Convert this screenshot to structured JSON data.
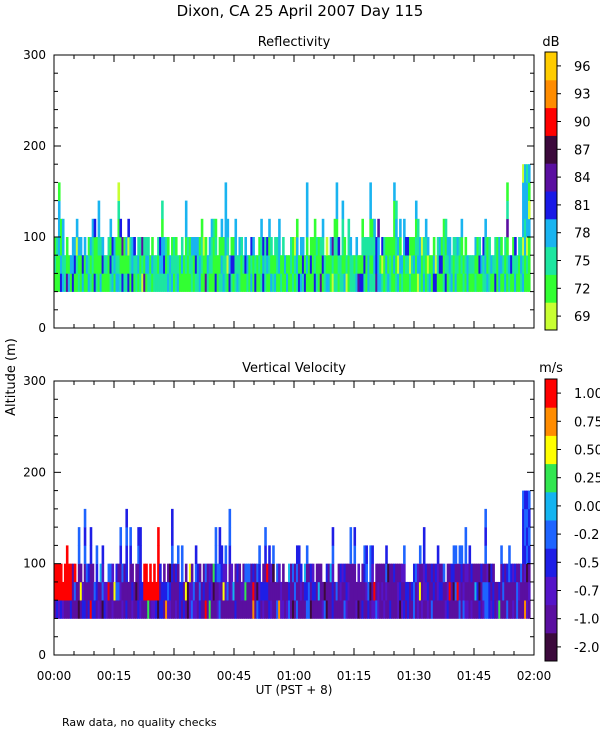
{
  "figure": {
    "title": "Dixon, CA 25 April 2007  Day 115",
    "ylabel": "Altitude (m)",
    "xlabel": "UT  (PST + 8)",
    "note": "Raw data, no quality checks"
  },
  "chart_data": [
    {
      "type": "heatmap",
      "title": "Reflectivity",
      "xlabel": "UT  (PST + 8)",
      "ylabel": "Altitude (m)",
      "xlim": [
        0,
        120
      ],
      "ylim": [
        0,
        300
      ],
      "x_tick_labels": [
        "00:00",
        "00:15",
        "00:30",
        "00:45",
        "01:00",
        "01:15",
        "01:30",
        "01:45",
        "02:00"
      ],
      "y_ticks": [
        0,
        100,
        200,
        300
      ],
      "colorbar": {
        "unit": "dB",
        "tick_labels": [
          "69",
          "72",
          "75",
          "78",
          "81",
          "84",
          "87",
          "90",
          "93",
          "96"
        ],
        "colors": [
          "#c8ff32",
          "#32ff32",
          "#1de6a0",
          "#19b4f0",
          "#1919e6",
          "#5a0fa0",
          "#3c0a3c",
          "#ff0000",
          "#ff8c00",
          "#ffcc00"
        ]
      },
      "data_extent": {
        "base_m": 40,
        "main_top_m": 100,
        "max_top_m": 180,
        "time_range_min": [
          0,
          119
        ]
      },
      "dominant_values_db": [
        72,
        75,
        78
      ]
    },
    {
      "type": "heatmap",
      "title": "Vertical Velocity",
      "xlabel": "UT  (PST + 8)",
      "ylabel": "Altitude (m)",
      "xlim": [
        0,
        120
      ],
      "ylim": [
        0,
        300
      ],
      "x_tick_labels": [
        "00:00",
        "00:15",
        "00:30",
        "00:45",
        "01:00",
        "01:15",
        "01:30",
        "01:45",
        "02:00"
      ],
      "y_ticks": [
        0,
        100,
        200,
        300
      ],
      "colorbar": {
        "unit": "m/s",
        "tick_labels": [
          "-2.00",
          "-1.00",
          "-0.75",
          "-0.50",
          "-0.25",
          "0.00",
          "0.25",
          "0.50",
          "0.75",
          "1.00"
        ],
        "colors": [
          "#3c0a3c",
          "#5a0fa0",
          "#5514c8",
          "#1e1ee6",
          "#1e64ff",
          "#14b4f0",
          "#32e650",
          "#ffff00",
          "#ff8c00",
          "#ff0000"
        ]
      },
      "data_extent": {
        "base_m": 40,
        "main_top_m": 100,
        "max_top_m": 180,
        "time_range_min": [
          0,
          119
        ]
      },
      "dominant_values_ms": [
        -1.0,
        -0.75
      ]
    }
  ]
}
